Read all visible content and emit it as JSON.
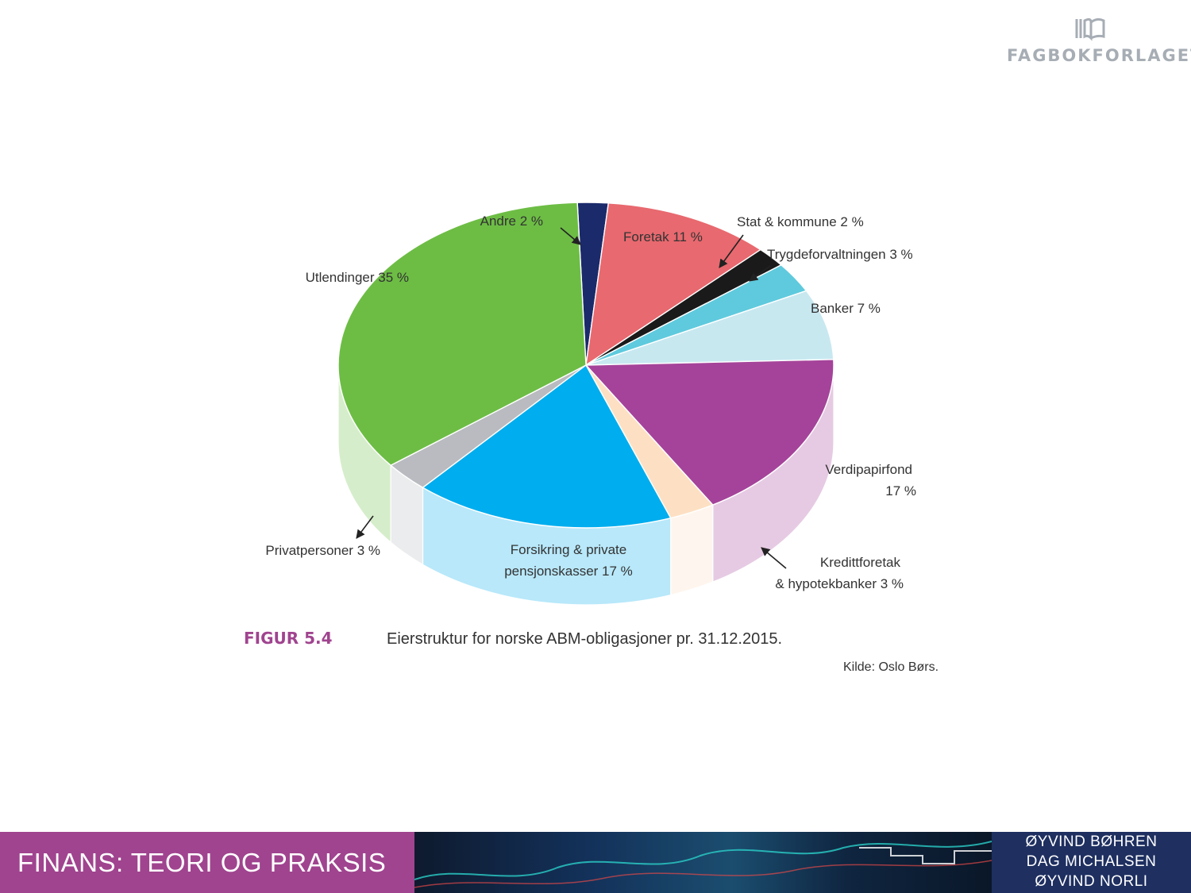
{
  "publisher": {
    "name": "FAGBOKFORLAGET",
    "logo_icon": "book-logo-icon"
  },
  "figure": {
    "tag": "FIGUR 5.4",
    "caption": "Eierstruktur for norske ABM-obligasjoner pr. 31.12.2015.",
    "source": "Kilde: Oslo Børs."
  },
  "chart_data": {
    "type": "pie",
    "title": "",
    "style": "3d",
    "slices": [
      {
        "label": [
          "Andre 2 %"
        ],
        "value": 2,
        "color": "#1b2a6b"
      },
      {
        "label": [
          "Foretak 11 %"
        ],
        "value": 11,
        "color": "#e8696f"
      },
      {
        "label": [
          "Stat & kommune 2 %"
        ],
        "value": 2,
        "color": "#1a1a1a"
      },
      {
        "label": [
          "Trygdeforvaltningen 3 %"
        ],
        "value": 3,
        "color": "#5fcadd"
      },
      {
        "label": [
          "Banker 7 %"
        ],
        "value": 7,
        "color": "#c8e8f0"
      },
      {
        "label": [
          "Verdipapirfond",
          "17 %"
        ],
        "value": 17,
        "color": "#a5439a"
      },
      {
        "label": [
          "Kredittforetak",
          "& hypotekbanker 3 %"
        ],
        "value": 3,
        "color": "#fde0c3"
      },
      {
        "label": [
          "Forsikring & private",
          "pensjonskasser 17 %"
        ],
        "value": 17,
        "color": "#00adee"
      },
      {
        "label": [
          "Privatpersoner 3 %"
        ],
        "value": 3,
        "color": "#b9bbc0"
      },
      {
        "label": [
          "Utlendinger 35 %"
        ],
        "value": 35,
        "color": "#6dbd45"
      }
    ]
  },
  "footer": {
    "book_title": "FINANS: TEORI OG PRAKSIS",
    "authors": [
      "ØYVIND BØHREN",
      "DAG MICHALSEN",
      "ØYVIND NORLI"
    ]
  }
}
